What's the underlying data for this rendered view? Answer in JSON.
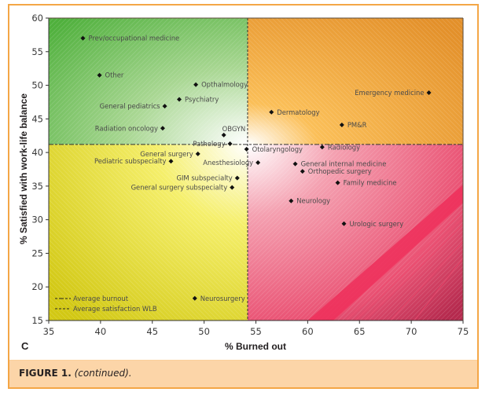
{
  "figure": {
    "caption_label": "FIGURE 1.",
    "caption_text": "(continued).",
    "panel_letter": "C"
  },
  "colors": {
    "frame": "#f4a646",
    "caption_band": "#fcd5a8",
    "quadrant_top_left": "#5cb847",
    "quadrant_top_right": "#e8952a",
    "quadrant_bottom_left": "#d6d01a",
    "quadrant_bottom_right": "#e8395c",
    "marker": "#111111"
  },
  "chart_data": {
    "type": "scatter",
    "title": "",
    "xlabel": "% Burned out",
    "ylabel": "% Satisfied with work-life balance",
    "xlim": [
      35,
      75
    ],
    "ylim": [
      15,
      60
    ],
    "xticks": [
      35,
      40,
      45,
      50,
      55,
      60,
      65,
      70,
      75
    ],
    "yticks": [
      15,
      20,
      25,
      30,
      35,
      40,
      45,
      50,
      55,
      60
    ],
    "grid": false,
    "reference_lines": {
      "average_burnout_x": 54.2,
      "average_satisfaction_wlb_y": 41.2
    },
    "legend": {
      "placement": "bottom-left",
      "entries": [
        {
          "label": "Average burnout",
          "style": "dash-long"
        },
        {
          "label": "Average satisfaction WLB",
          "style": "dash-short"
        }
      ]
    },
    "points": [
      {
        "label": "Prev/occupational medicine",
        "x": 38.3,
        "y": 57.0,
        "label_side": "right"
      },
      {
        "label": "Other",
        "x": 39.9,
        "y": 51.5,
        "label_side": "right"
      },
      {
        "label": "Opthalmology",
        "x": 49.2,
        "y": 50.1,
        "label_side": "right"
      },
      {
        "label": "Psychiatry",
        "x": 47.6,
        "y": 47.9,
        "label_side": "right"
      },
      {
        "label": "General pediatrics",
        "x": 46.2,
        "y": 46.9,
        "label_side": "left"
      },
      {
        "label": "Radiation oncology",
        "x": 46.0,
        "y": 43.6,
        "label_side": "left"
      },
      {
        "label": "OBGYN",
        "x": 51.9,
        "y": 42.6,
        "label_side": "above-right"
      },
      {
        "label": "Pathology",
        "x": 52.5,
        "y": 41.3,
        "label_side": "left"
      },
      {
        "label": "Otolaryngology",
        "x": 54.1,
        "y": 40.5,
        "label_side": "right"
      },
      {
        "label": "General surgery",
        "x": 49.4,
        "y": 39.8,
        "label_side": "left"
      },
      {
        "label": "Pediatric subspecialty",
        "x": 46.8,
        "y": 38.7,
        "label_side": "left"
      },
      {
        "label": "Anesthesiology",
        "x": 55.2,
        "y": 38.5,
        "label_side": "left"
      },
      {
        "label": "GIM subspecialty",
        "x": 53.2,
        "y": 36.2,
        "label_side": "left"
      },
      {
        "label": "General surgery subspecialty",
        "x": 52.7,
        "y": 34.8,
        "label_side": "left"
      },
      {
        "label": "Neurosurgery",
        "x": 49.1,
        "y": 18.3,
        "label_side": "right"
      },
      {
        "label": "Emergency medicine",
        "x": 71.7,
        "y": 48.9,
        "label_side": "left"
      },
      {
        "label": "Dermatology",
        "x": 56.5,
        "y": 46.0,
        "label_side": "right"
      },
      {
        "label": "PM&R",
        "x": 63.3,
        "y": 44.1,
        "label_side": "right"
      },
      {
        "label": "Radiology",
        "x": 61.4,
        "y": 40.8,
        "label_side": "right"
      },
      {
        "label": "General internal medicine",
        "x": 58.8,
        "y": 38.3,
        "label_side": "right"
      },
      {
        "label": "Orthopedic surgery",
        "x": 59.5,
        "y": 37.2,
        "label_side": "right"
      },
      {
        "label": "Family medicine",
        "x": 62.9,
        "y": 35.5,
        "label_side": "right"
      },
      {
        "label": "Neurology",
        "x": 58.4,
        "y": 32.8,
        "label_side": "right"
      },
      {
        "label": "Urologic surgery",
        "x": 63.5,
        "y": 29.4,
        "label_side": "right"
      }
    ]
  }
}
